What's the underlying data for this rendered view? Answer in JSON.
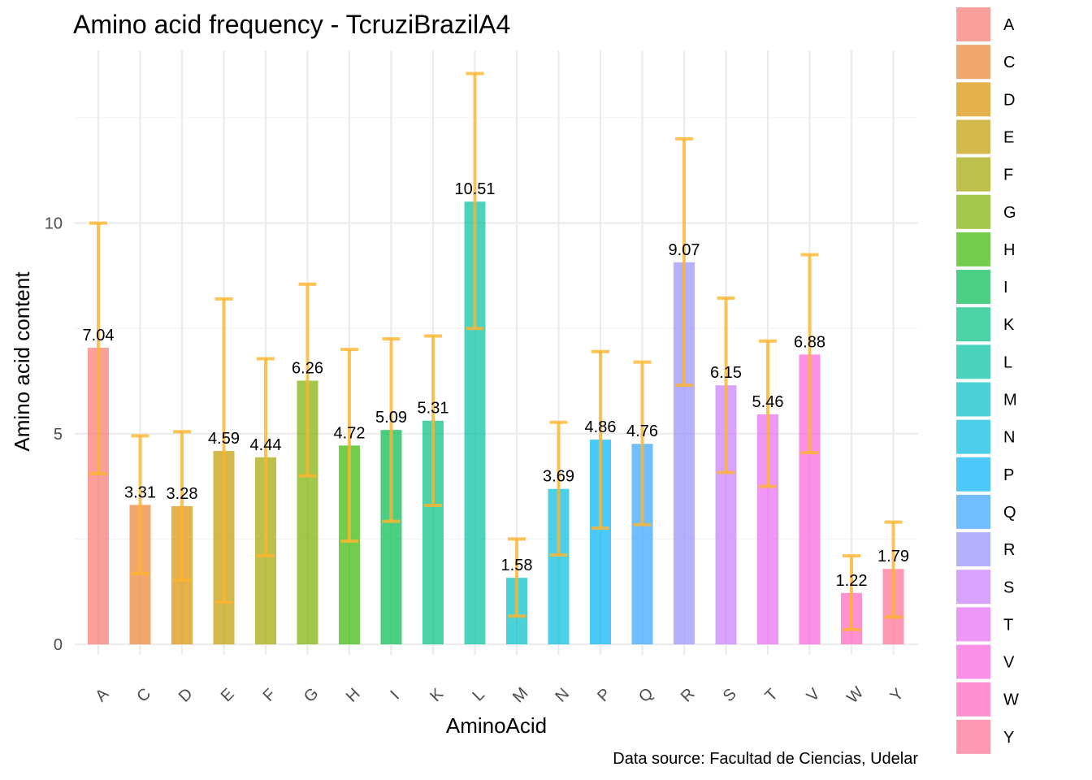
{
  "chart_data": {
    "type": "bar",
    "title": "Amino acid frequency - TcruziBrazilA4",
    "xlabel": "AminoAcid",
    "ylabel": "Amino acid content",
    "caption": "Data source: Facultad de Ciencias, Udelar",
    "categories": [
      "A",
      "C",
      "D",
      "E",
      "F",
      "G",
      "H",
      "I",
      "K",
      "L",
      "M",
      "N",
      "P",
      "Q",
      "R",
      "S",
      "T",
      "V",
      "W",
      "Y"
    ],
    "values": [
      7.04,
      3.31,
      3.28,
      4.59,
      4.44,
      6.26,
      4.72,
      5.09,
      5.31,
      10.51,
      1.58,
      3.69,
      4.86,
      4.76,
      9.07,
      6.15,
      5.46,
      6.88,
      1.22,
      1.79
    ],
    "data_labels": [
      "7.04",
      "3.31",
      "3.28",
      "4.59",
      "4.44",
      "6.26",
      "4.72",
      "5.09",
      "5.31",
      "10.51",
      "1.58",
      "3.69",
      "4.86",
      "4.76",
      "9.07",
      "6.15",
      "5.46",
      "6.88",
      "1.22",
      "1.79"
    ],
    "error_low": [
      4.05,
      1.68,
      1.52,
      1.0,
      2.1,
      4.0,
      2.45,
      2.92,
      3.3,
      7.5,
      0.67,
      2.12,
      2.76,
      2.84,
      6.15,
      4.08,
      3.75,
      4.55,
      0.35,
      0.65
    ],
    "error_high": [
      10.0,
      4.95,
      5.05,
      8.2,
      6.78,
      8.55,
      7.0,
      7.25,
      7.32,
      13.55,
      2.5,
      5.27,
      6.95,
      6.7,
      12.0,
      8.22,
      7.2,
      9.25,
      2.1,
      2.9
    ],
    "colors": [
      "#F8766D",
      "#EA8331",
      "#D89000",
      "#C09B00",
      "#A3A500",
      "#7CAE00",
      "#39B600",
      "#00BB4E",
      "#00BF7D",
      "#00C1A3",
      "#00BFC4",
      "#00BAE0",
      "#00B0F6",
      "#35A2FF",
      "#9590FF",
      "#C77CFF",
      "#E76BF3",
      "#FA62DB",
      "#FF62BC",
      "#FF6C91"
    ],
    "error_color": "#FFB52E",
    "ylim": [
      -0.25,
      14.1
    ],
    "yticks": [
      0,
      5,
      10
    ],
    "ytick_labels": [
      "0",
      "5",
      "10"
    ],
    "grid": true,
    "legend_position": "right",
    "legend_labels": [
      "A",
      "C",
      "D",
      "E",
      "F",
      "G",
      "H",
      "I",
      "K",
      "L",
      "M",
      "N",
      "P",
      "Q",
      "R",
      "S",
      "T",
      "V",
      "W",
      "Y"
    ]
  }
}
